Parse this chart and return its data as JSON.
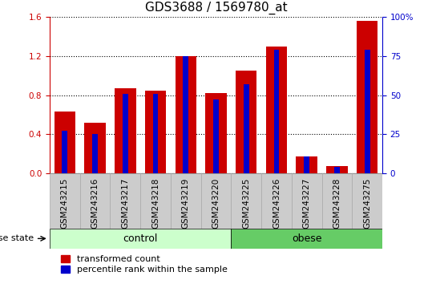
{
  "title": "GDS3688 / 1569780_at",
  "samples": [
    "GSM243215",
    "GSM243216",
    "GSM243217",
    "GSM243218",
    "GSM243219",
    "GSM243220",
    "GSM243225",
    "GSM243226",
    "GSM243227",
    "GSM243228",
    "GSM243275"
  ],
  "red_values": [
    0.63,
    0.52,
    0.87,
    0.85,
    1.2,
    0.82,
    1.05,
    1.3,
    0.17,
    0.07,
    1.56
  ],
  "blue_values_pct": [
    27,
    25,
    51,
    51,
    75,
    47,
    57,
    79,
    11,
    4,
    79
  ],
  "ylim_left": [
    0,
    1.6
  ],
  "ylim_right": [
    0,
    100
  ],
  "yticks_left": [
    0,
    0.4,
    0.8,
    1.2,
    1.6
  ],
  "yticks_right": [
    0,
    25,
    50,
    75,
    100
  ],
  "n_control": 6,
  "n_obese": 5,
  "group_label": "disease state",
  "control_label": "control",
  "obese_label": "obese",
  "legend_red": "transformed count",
  "legend_blue": "percentile rank within the sample",
  "red_color": "#CC0000",
  "blue_color": "#0000CC",
  "control_bg": "#CCFFCC",
  "obese_bg": "#66CC66",
  "red_bar_width": 0.7,
  "blue_bar_width": 0.18,
  "tick_bg": "#CCCCCC",
  "title_fontsize": 11,
  "tick_fontsize": 7.5,
  "group_fontsize": 9,
  "legend_fontsize": 8
}
